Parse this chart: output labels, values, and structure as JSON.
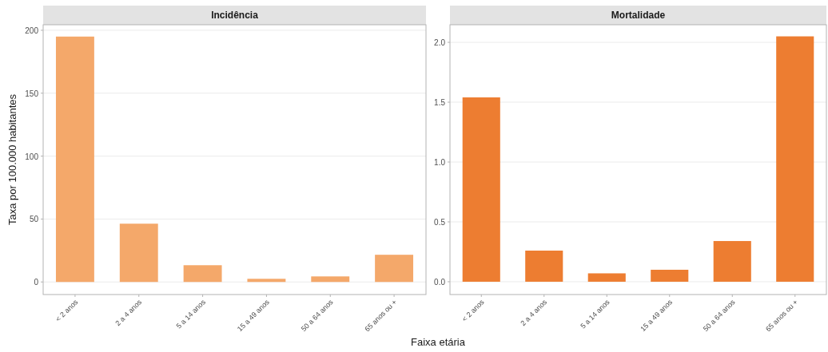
{
  "chart_data": [
    {
      "type": "bar",
      "title": "Incidência",
      "ylabel": "Taxa por 100.000 habitantes",
      "xlabel": "Faixa etária",
      "categories": [
        "< 2 anos",
        "2 a 4 anos",
        "5 a 14 anos",
        "15 a 49 anos",
        "50 a 64 anos",
        "65 anos ou +"
      ],
      "values": [
        195,
        46.3,
        13.3,
        2.5,
        4.4,
        21.6
      ],
      "color": "#f4a86a",
      "ylim": [
        -10,
        204.4
      ],
      "yticks": [
        0,
        50,
        100,
        150,
        200
      ],
      "grid": "y"
    },
    {
      "type": "bar",
      "title": "Mortalidade",
      "categories": [
        "< 2 anos",
        "2 a 4 anos",
        "5 a 14 anos",
        "15 a 49 anos",
        "50 a 64 anos",
        "65 anos ou +"
      ],
      "values": [
        1.54,
        0.26,
        0.07,
        0.1,
        0.34,
        2.05
      ],
      "color": "#ed7d31",
      "ylim": [
        -0.107,
        2.147
      ],
      "yticks": [
        {
          "value": 0,
          "label": "0.0"
        },
        {
          "value": 0.5,
          "label": "0.5"
        },
        {
          "value": 1,
          "label": "1.0"
        },
        {
          "value": 1.5,
          "label": "1.5"
        },
        {
          "value": 2,
          "label": "2.0"
        }
      ],
      "grid": "y"
    }
  ]
}
